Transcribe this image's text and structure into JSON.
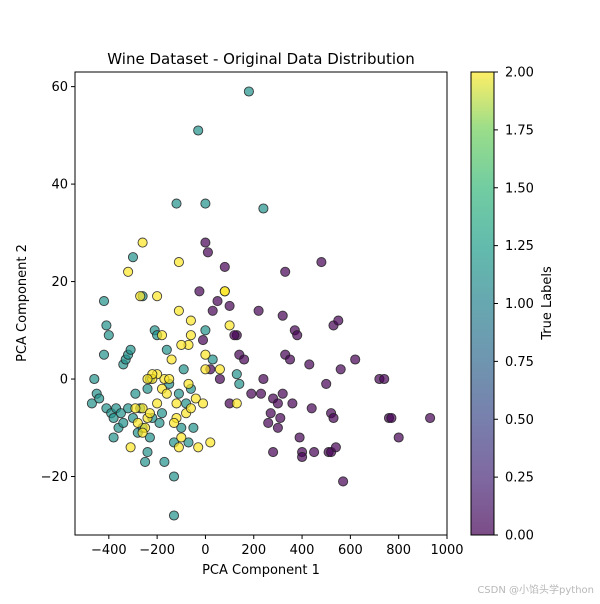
{
  "chart_data": {
    "type": "scatter",
    "title": "Wine Dataset - Original Data Distribution",
    "xlabel": "PCA Component 1",
    "ylabel": "PCA Component 2",
    "xlim": [
      -540,
      1000
    ],
    "ylim": [
      -32,
      63
    ],
    "x_ticks": [
      -400,
      -200,
      0,
      200,
      400,
      600,
      800,
      1000
    ],
    "x_tick_labels": [
      "−400",
      "−200",
      "0",
      "200",
      "400",
      "600",
      "800",
      "1000"
    ],
    "y_ticks": [
      -20,
      0,
      20,
      40,
      60
    ],
    "y_tick_labels": [
      "−20",
      "0",
      "20",
      "40",
      "60"
    ],
    "colorbar": {
      "label": "True Labels",
      "range": [
        0,
        2
      ],
      "ticks": [
        0,
        0.25,
        0.5,
        0.75,
        1.0,
        1.25,
        1.5,
        1.75,
        2.0
      ],
      "tick_labels": [
        "0.00",
        "0.25",
        "0.50",
        "0.75",
        "1.00",
        "1.25",
        "1.50",
        "1.75",
        "2.00"
      ]
    },
    "colors": {
      "class0": "#440154",
      "class1": "#21918c",
      "class2": "#fde725",
      "marker_edge": "#222222"
    },
    "series": [
      {
        "name": "0",
        "points": [
          [
            -25,
            18
          ],
          [
            0,
            28
          ],
          [
            30,
            14
          ],
          [
            50,
            16
          ],
          [
            80,
            23
          ],
          [
            100,
            15
          ],
          [
            130,
            9
          ],
          [
            140,
            5
          ],
          [
            160,
            4
          ],
          [
            -10,
            8
          ],
          [
            20,
            2
          ],
          [
            220,
            14
          ],
          [
            240,
            0
          ],
          [
            230,
            -3
          ],
          [
            260,
            -9
          ],
          [
            270,
            -7
          ],
          [
            280,
            -4
          ],
          [
            280,
            -15
          ],
          [
            300,
            -10
          ],
          [
            300,
            -5
          ],
          [
            310,
            -8
          ],
          [
            320,
            -3
          ],
          [
            330,
            22
          ],
          [
            320,
            13
          ],
          [
            330,
            5
          ],
          [
            350,
            4
          ],
          [
            360,
            -5
          ],
          [
            370,
            10
          ],
          [
            380,
            9
          ],
          [
            390,
            -12
          ],
          [
            400,
            -15
          ],
          [
            400,
            -16
          ],
          [
            430,
            3
          ],
          [
            440,
            -6
          ],
          [
            450,
            -15
          ],
          [
            480,
            24
          ],
          [
            500,
            -1
          ],
          [
            510,
            -15
          ],
          [
            520,
            -7
          ],
          [
            520,
            -15
          ],
          [
            530,
            11
          ],
          [
            530,
            -8
          ],
          [
            540,
            -14
          ],
          [
            550,
            12
          ],
          [
            560,
            2
          ],
          [
            570,
            -21
          ],
          [
            620,
            4
          ],
          [
            720,
            0
          ],
          [
            740,
            0
          ],
          [
            760,
            -8
          ],
          [
            770,
            -8
          ],
          [
            800,
            -12
          ],
          [
            930,
            -8
          ],
          [
            100,
            -5
          ],
          [
            190,
            -3
          ],
          [
            10,
            26
          ],
          [
            120,
            9
          ],
          [
            60,
            0
          ]
        ]
      },
      {
        "name": "1",
        "points": [
          [
            -460,
            0
          ],
          [
            -470,
            -5
          ],
          [
            -450,
            -3
          ],
          [
            -440,
            -4
          ],
          [
            -420,
            16
          ],
          [
            -420,
            5
          ],
          [
            -410,
            11
          ],
          [
            -400,
            9
          ],
          [
            -410,
            -6
          ],
          [
            -390,
            -7
          ],
          [
            -380,
            -8
          ],
          [
            -380,
            -12
          ],
          [
            -370,
            -6
          ],
          [
            -360,
            -10
          ],
          [
            -350,
            -7
          ],
          [
            -340,
            -9
          ],
          [
            -340,
            3
          ],
          [
            -330,
            4
          ],
          [
            -320,
            5
          ],
          [
            -310,
            6
          ],
          [
            -300,
            25
          ],
          [
            -300,
            -8
          ],
          [
            -290,
            -3
          ],
          [
            -280,
            -11
          ],
          [
            -270,
            -6
          ],
          [
            -260,
            17
          ],
          [
            -260,
            -10
          ],
          [
            -250,
            -17
          ],
          [
            -240,
            -15
          ],
          [
            -240,
            -2
          ],
          [
            -230,
            0
          ],
          [
            -220,
            -8
          ],
          [
            -210,
            10
          ],
          [
            -200,
            9
          ],
          [
            -190,
            -9
          ],
          [
            -170,
            -17
          ],
          [
            -160,
            6
          ],
          [
            -150,
            -1
          ],
          [
            -130,
            -13
          ],
          [
            -130,
            -20
          ],
          [
            -130,
            -28
          ],
          [
            -120,
            36
          ],
          [
            -110,
            -3
          ],
          [
            -100,
            -10
          ],
          [
            -90,
            2
          ],
          [
            -80,
            -5
          ],
          [
            -70,
            -13
          ],
          [
            -60,
            -2
          ],
          [
            -50,
            -10
          ],
          [
            0,
            36
          ],
          [
            -30,
            51
          ],
          [
            0,
            10
          ],
          [
            30,
            4
          ],
          [
            130,
            1
          ],
          [
            140,
            -1
          ],
          [
            180,
            59
          ],
          [
            240,
            35
          ],
          [
            -230,
            -12
          ],
          [
            -180,
            -7
          ],
          [
            -320,
            -6
          ]
        ]
      },
      {
        "name": "2",
        "points": [
          [
            -260,
            28
          ],
          [
            -320,
            22
          ],
          [
            -270,
            17
          ],
          [
            -200,
            17
          ],
          [
            -110,
            24
          ],
          [
            -110,
            14
          ],
          [
            -60,
            12
          ],
          [
            -60,
            9
          ],
          [
            -70,
            7
          ],
          [
            -100,
            7
          ],
          [
            -140,
            4
          ],
          [
            -170,
            0
          ],
          [
            -200,
            1
          ],
          [
            -220,
            0
          ],
          [
            -220,
            1
          ],
          [
            -240,
            0
          ],
          [
            -240,
            -8
          ],
          [
            -250,
            -10
          ],
          [
            -260,
            -6
          ],
          [
            -260,
            -11
          ],
          [
            -280,
            -9
          ],
          [
            -310,
            -14
          ],
          [
            -290,
            -6
          ],
          [
            -200,
            -5
          ],
          [
            -180,
            -2
          ],
          [
            -160,
            -3
          ],
          [
            -120,
            -5
          ],
          [
            -120,
            -8
          ],
          [
            -110,
            -14
          ],
          [
            -100,
            -12
          ],
          [
            -80,
            -7
          ],
          [
            -70,
            -1
          ],
          [
            -60,
            -6
          ],
          [
            -40,
            -4
          ],
          [
            -30,
            -14
          ],
          [
            -10,
            -5
          ],
          [
            0,
            5
          ],
          [
            0,
            2
          ],
          [
            20,
            -13
          ],
          [
            60,
            2
          ],
          [
            80,
            18
          ],
          [
            80,
            18
          ],
          [
            100,
            11
          ],
          [
            130,
            -5
          ],
          [
            -180,
            9
          ],
          [
            -150,
            0
          ],
          [
            -230,
            -7
          ],
          [
            -130,
            -9
          ]
        ]
      }
    ]
  },
  "watermark": "CSDN @小馅头学python"
}
